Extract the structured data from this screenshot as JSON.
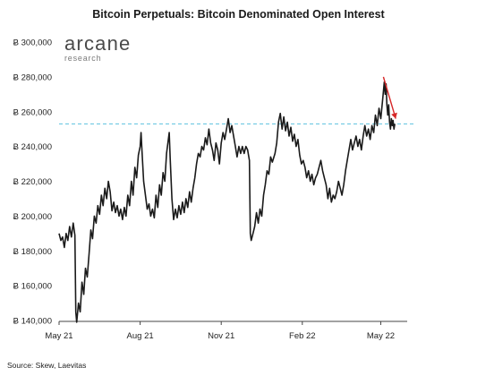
{
  "source": "Source: Skew, Laevitas",
  "logo": {
    "main": "arcane",
    "sub": "research"
  },
  "chart_data": {
    "type": "line",
    "title": "Bitcoin Perpetuals: Bitcoin Denominated Open Interest",
    "xlabel": "",
    "ylabel": "",
    "ylim": [
      140000,
      300000
    ],
    "xlim": [
      "2021-05-01",
      "2022-05-31"
    ],
    "yticks": [
      {
        "value": 140000,
        "label": "Ƀ 140,000"
      },
      {
        "value": 160000,
        "label": "Ƀ 160,000"
      },
      {
        "value": 180000,
        "label": "Ƀ 180,000"
      },
      {
        "value": 200000,
        "label": "Ƀ 200,000"
      },
      {
        "value": 220000,
        "label": "Ƀ 220,000"
      },
      {
        "value": 240000,
        "label": "Ƀ 240,000"
      },
      {
        "value": 260000,
        "label": "Ƀ 260,000"
      },
      {
        "value": 280000,
        "label": "Ƀ 280,000"
      },
      {
        "value": 300000,
        "label": "Ƀ 300,000"
      }
    ],
    "xticks": [
      {
        "value": "2021-05-01",
        "label": "May 21"
      },
      {
        "value": "2021-08-01",
        "label": "Aug 21"
      },
      {
        "value": "2021-11-01",
        "label": "Nov 21"
      },
      {
        "value": "2022-02-01",
        "label": "Feb 22"
      },
      {
        "value": "2022-05-01",
        "label": "May 22"
      }
    ],
    "reference_line": {
      "value": 253000,
      "style": "dashed",
      "color": "#5bc0de"
    },
    "arrow": {
      "from": [
        "2022-05-04",
        280000
      ],
      "to": [
        "2022-05-18",
        256000
      ],
      "color": "#d62728"
    },
    "series_color": "#1a1a1a",
    "series": [
      {
        "values": [
          [
            "2021-05-01",
            190000
          ],
          [
            "2021-05-03",
            186000
          ],
          [
            "2021-05-05",
            188000
          ],
          [
            "2021-05-07",
            182000
          ],
          [
            "2021-05-09",
            190000
          ],
          [
            "2021-05-11",
            186000
          ],
          [
            "2021-05-13",
            194000
          ],
          [
            "2021-05-15",
            188000
          ],
          [
            "2021-05-17",
            196000
          ],
          [
            "2021-05-19",
            189000
          ],
          [
            "2021-05-20",
            145000
          ],
          [
            "2021-05-21",
            139000
          ],
          [
            "2021-05-23",
            150000
          ],
          [
            "2021-05-25",
            145000
          ],
          [
            "2021-05-27",
            162000
          ],
          [
            "2021-05-29",
            155000
          ],
          [
            "2021-05-31",
            170000
          ],
          [
            "2021-06-02",
            165000
          ],
          [
            "2021-06-04",
            178000
          ],
          [
            "2021-06-06",
            192000
          ],
          [
            "2021-06-08",
            187000
          ],
          [
            "2021-06-10",
            200000
          ],
          [
            "2021-06-12",
            196000
          ],
          [
            "2021-06-14",
            206000
          ],
          [
            "2021-06-16",
            201000
          ],
          [
            "2021-06-18",
            212000
          ],
          [
            "2021-06-20",
            206000
          ],
          [
            "2021-06-22",
            216000
          ],
          [
            "2021-06-24",
            210000
          ],
          [
            "2021-06-26",
            220000
          ],
          [
            "2021-06-28",
            214000
          ],
          [
            "2021-06-30",
            203000
          ],
          [
            "2021-07-02",
            208000
          ],
          [
            "2021-07-04",
            202000
          ],
          [
            "2021-07-06",
            206000
          ],
          [
            "2021-07-08",
            200000
          ],
          [
            "2021-07-10",
            204000
          ],
          [
            "2021-07-12",
            198000
          ],
          [
            "2021-07-14",
            205000
          ],
          [
            "2021-07-16",
            200000
          ],
          [
            "2021-07-18",
            212000
          ],
          [
            "2021-07-20",
            206000
          ],
          [
            "2021-07-22",
            220000
          ],
          [
            "2021-07-24",
            212000
          ],
          [
            "2021-07-26",
            228000
          ],
          [
            "2021-07-28",
            222000
          ],
          [
            "2021-07-30",
            235000
          ],
          [
            "2021-08-01",
            240000
          ],
          [
            "2021-08-02",
            248000
          ],
          [
            "2021-08-03",
            238000
          ],
          [
            "2021-08-05",
            220000
          ],
          [
            "2021-08-07",
            212000
          ],
          [
            "2021-08-09",
            204000
          ],
          [
            "2021-08-11",
            207000
          ],
          [
            "2021-08-13",
            200000
          ],
          [
            "2021-08-15",
            204000
          ],
          [
            "2021-08-17",
            199000
          ],
          [
            "2021-08-19",
            212000
          ],
          [
            "2021-08-21",
            205000
          ],
          [
            "2021-08-23",
            218000
          ],
          [
            "2021-08-25",
            212000
          ],
          [
            "2021-08-27",
            225000
          ],
          [
            "2021-08-29",
            220000
          ],
          [
            "2021-08-31",
            236000
          ],
          [
            "2021-09-02",
            244000
          ],
          [
            "2021-09-03",
            248000
          ],
          [
            "2021-09-04",
            234000
          ],
          [
            "2021-09-06",
            210000
          ],
          [
            "2021-09-08",
            198000
          ],
          [
            "2021-09-10",
            204000
          ],
          [
            "2021-09-12",
            199000
          ],
          [
            "2021-09-14",
            206000
          ],
          [
            "2021-09-16",
            201000
          ],
          [
            "2021-09-18",
            208000
          ],
          [
            "2021-09-20",
            202000
          ],
          [
            "2021-09-22",
            210000
          ],
          [
            "2021-09-24",
            205000
          ],
          [
            "2021-09-26",
            214000
          ],
          [
            "2021-09-28",
            208000
          ],
          [
            "2021-09-30",
            216000
          ],
          [
            "2021-10-02",
            222000
          ],
          [
            "2021-10-04",
            230000
          ],
          [
            "2021-10-06",
            236000
          ],
          [
            "2021-10-08",
            234000
          ],
          [
            "2021-10-10",
            240000
          ],
          [
            "2021-10-12",
            238000
          ],
          [
            "2021-10-14",
            245000
          ],
          [
            "2021-10-16",
            241000
          ],
          [
            "2021-10-18",
            250000
          ],
          [
            "2021-10-20",
            242000
          ],
          [
            "2021-10-22",
            238000
          ],
          [
            "2021-10-24",
            232000
          ],
          [
            "2021-10-26",
            242000
          ],
          [
            "2021-10-28",
            238000
          ],
          [
            "2021-10-30",
            230000
          ],
          [
            "2021-11-01",
            242000
          ],
          [
            "2021-11-03",
            248000
          ],
          [
            "2021-11-05",
            244000
          ],
          [
            "2021-11-07",
            250000
          ],
          [
            "2021-11-09",
            256000
          ],
          [
            "2021-11-11",
            248000
          ],
          [
            "2021-11-13",
            252000
          ],
          [
            "2021-11-15",
            246000
          ],
          [
            "2021-11-17",
            240000
          ],
          [
            "2021-11-19",
            234000
          ],
          [
            "2021-11-21",
            240000
          ],
          [
            "2021-11-23",
            236000
          ],
          [
            "2021-11-25",
            240000
          ],
          [
            "2021-11-27",
            236000
          ],
          [
            "2021-11-29",
            240000
          ],
          [
            "2021-12-01",
            238000
          ],
          [
            "2021-12-03",
            232000
          ],
          [
            "2021-12-04",
            190000
          ],
          [
            "2021-12-05",
            186000
          ],
          [
            "2021-12-07",
            190000
          ],
          [
            "2021-12-09",
            194000
          ],
          [
            "2021-12-11",
            202000
          ],
          [
            "2021-12-13",
            196000
          ],
          [
            "2021-12-15",
            204000
          ],
          [
            "2021-12-17",
            200000
          ],
          [
            "2021-12-19",
            212000
          ],
          [
            "2021-12-21",
            218000
          ],
          [
            "2021-12-23",
            226000
          ],
          [
            "2021-12-25",
            224000
          ],
          [
            "2021-12-27",
            234000
          ],
          [
            "2021-12-29",
            231000
          ],
          [
            "2022-01-01",
            236000
          ],
          [
            "2022-01-03",
            242000
          ],
          [
            "2022-01-05",
            254000
          ],
          [
            "2022-01-07",
            259000
          ],
          [
            "2022-01-09",
            250000
          ],
          [
            "2022-01-11",
            257000
          ],
          [
            "2022-01-13",
            249000
          ],
          [
            "2022-01-15",
            254000
          ],
          [
            "2022-01-17",
            246000
          ],
          [
            "2022-01-19",
            251000
          ],
          [
            "2022-01-21",
            243000
          ],
          [
            "2022-01-23",
            247000
          ],
          [
            "2022-01-25",
            240000
          ],
          [
            "2022-01-27",
            244000
          ],
          [
            "2022-01-29",
            235000
          ],
          [
            "2022-01-31",
            230000
          ],
          [
            "2022-02-02",
            232000
          ],
          [
            "2022-02-04",
            228000
          ],
          [
            "2022-02-06",
            222000
          ],
          [
            "2022-02-08",
            226000
          ],
          [
            "2022-02-10",
            220000
          ],
          [
            "2022-02-12",
            224000
          ],
          [
            "2022-02-14",
            218000
          ],
          [
            "2022-02-16",
            222000
          ],
          [
            "2022-02-18",
            224000
          ],
          [
            "2022-02-20",
            228000
          ],
          [
            "2022-02-22",
            232000
          ],
          [
            "2022-02-24",
            226000
          ],
          [
            "2022-02-26",
            222000
          ],
          [
            "2022-02-28",
            218000
          ],
          [
            "2022-03-02",
            210000
          ],
          [
            "2022-03-04",
            216000
          ],
          [
            "2022-03-06",
            208000
          ],
          [
            "2022-03-08",
            212000
          ],
          [
            "2022-03-10",
            210000
          ],
          [
            "2022-03-12",
            214000
          ],
          [
            "2022-03-14",
            220000
          ],
          [
            "2022-03-16",
            216000
          ],
          [
            "2022-03-18",
            212000
          ],
          [
            "2022-03-20",
            218000
          ],
          [
            "2022-03-22",
            226000
          ],
          [
            "2022-03-24",
            232000
          ],
          [
            "2022-03-26",
            238000
          ],
          [
            "2022-03-28",
            244000
          ],
          [
            "2022-03-30",
            238000
          ],
          [
            "2022-04-01",
            242000
          ],
          [
            "2022-04-03",
            246000
          ],
          [
            "2022-04-05",
            240000
          ],
          [
            "2022-04-07",
            244000
          ],
          [
            "2022-04-09",
            238000
          ],
          [
            "2022-04-11",
            246000
          ],
          [
            "2022-04-13",
            252000
          ],
          [
            "2022-04-15",
            246000
          ],
          [
            "2022-04-17",
            250000
          ],
          [
            "2022-04-19",
            244000
          ],
          [
            "2022-04-21",
            252000
          ],
          [
            "2022-04-23",
            248000
          ],
          [
            "2022-04-25",
            258000
          ],
          [
            "2022-04-27",
            252000
          ],
          [
            "2022-04-29",
            262000
          ],
          [
            "2022-05-01",
            256000
          ],
          [
            "2022-05-03",
            266000
          ],
          [
            "2022-05-05",
            277000
          ],
          [
            "2022-05-06",
            270000
          ],
          [
            "2022-05-07",
            276000
          ],
          [
            "2022-05-08",
            264000
          ],
          [
            "2022-05-09",
            258000
          ],
          [
            "2022-05-10",
            264000
          ],
          [
            "2022-05-11",
            254000
          ],
          [
            "2022-05-12",
            250000
          ],
          [
            "2022-05-13",
            256000
          ],
          [
            "2022-05-14",
            252000
          ],
          [
            "2022-05-15",
            255000
          ],
          [
            "2022-05-16",
            250000
          ],
          [
            "2022-05-17",
            253000
          ]
        ]
      }
    ]
  }
}
